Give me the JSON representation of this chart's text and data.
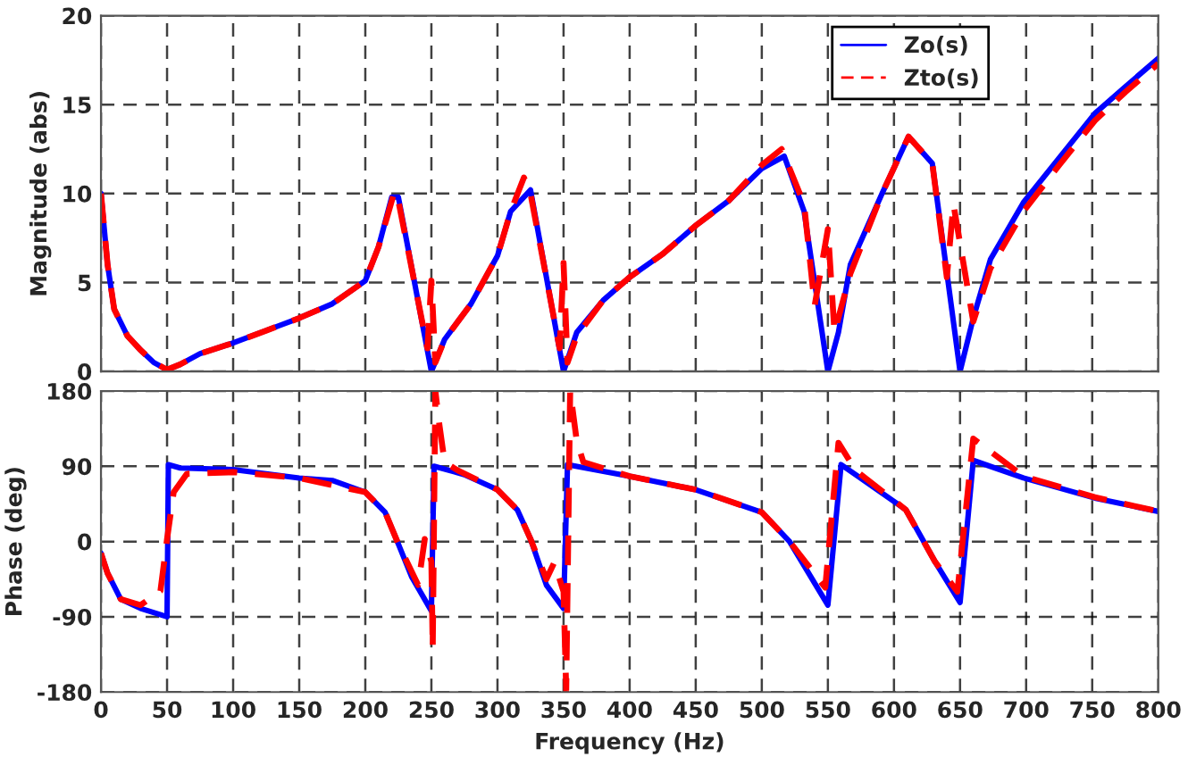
{
  "chart_data": [
    {
      "type": "line",
      "ylabel": "Magnitude (abs)",
      "xlim": [
        0,
        800
      ],
      "xticks": [
        0,
        50,
        100,
        150,
        200,
        250,
        300,
        350,
        400,
        450,
        500,
        550,
        600,
        650,
        700,
        750,
        800
      ],
      "ylim": [
        0,
        20
      ],
      "yticks": [
        0,
        5,
        10,
        15,
        20
      ],
      "grid": true,
      "legend": "top right",
      "tick_labels": "y",
      "series": [
        {
          "name": "Zo(s)",
          "color": "#0000ff",
          "line_style": "solid",
          "x": [
            0,
            5,
            10,
            20,
            30,
            40,
            50,
            60,
            75,
            100,
            125,
            150,
            175,
            200,
            210,
            220,
            225,
            250,
            260,
            280,
            300,
            310,
            325,
            350,
            360,
            380,
            400,
            425,
            450,
            475,
            500,
            517,
            532,
            550,
            558,
            567,
            591,
            611,
            629,
            650,
            660,
            673,
            698,
            725,
            752,
            775,
            800
          ],
          "values": [
            10,
            6,
            3.5,
            2,
            1.2,
            0.5,
            0.1,
            0.4,
            1,
            1.6,
            2.3,
            3,
            3.8,
            5.1,
            7,
            9.8,
            9.8,
            0,
            1.8,
            3.8,
            6.5,
            9,
            10.2,
            0,
            2.2,
            4,
            5.3,
            6.6,
            8.2,
            9.6,
            11.4,
            12.1,
            9,
            0,
            2.2,
            6,
            10,
            13.2,
            11.7,
            0,
            3,
            6.3,
            9.5,
            12,
            14.5,
            16,
            17.6
          ]
        },
        {
          "name": "Zto(s)",
          "color": "#ff0000",
          "line_style": "dashed",
          "x": [
            0,
            5,
            10,
            20,
            30,
            40,
            50,
            60,
            75,
            100,
            125,
            150,
            175,
            200,
            210,
            222,
            225,
            247,
            250,
            253,
            260,
            280,
            300,
            310,
            320,
            325,
            347,
            350,
            353,
            360,
            380,
            400,
            425,
            450,
            475,
            500,
            515,
            532,
            540,
            550,
            555,
            567,
            591,
            611,
            629,
            640,
            645,
            660,
            673,
            698,
            725,
            752,
            775,
            800
          ],
          "values": [
            10,
            6,
            3.5,
            2,
            1.2,
            0.5,
            0.1,
            0.4,
            1,
            1.6,
            2.3,
            3,
            3.8,
            5.1,
            7,
            10.1,
            9.6,
            1.3,
            5.1,
            0.5,
            1.8,
            3.8,
            6.5,
            9,
            10.9,
            10,
            1.3,
            6.1,
            0.5,
            2,
            4,
            5.3,
            6.6,
            8.2,
            9.6,
            11.6,
            12.5,
            9.4,
            3.7,
            8,
            2.2,
            5.5,
            10,
            13.2,
            11.7,
            5.3,
            9.4,
            2.8,
            5.8,
            9,
            11.6,
            14.1,
            15.7,
            17.3
          ]
        }
      ]
    },
    {
      "type": "line",
      "xlabel": "Frequency (Hz)",
      "ylabel": "Phase (deg)",
      "xlim": [
        0,
        800
      ],
      "xticks": [
        0,
        50,
        100,
        150,
        200,
        250,
        300,
        350,
        400,
        450,
        500,
        550,
        600,
        650,
        700,
        750,
        800
      ],
      "ylim": [
        -180,
        180
      ],
      "yticks": [
        -180,
        -90,
        0,
        90,
        180
      ],
      "grid": true,
      "series": [
        {
          "color": "#0000ff",
          "line_style": "solid",
          "x": [
            0,
            5,
            15,
            30,
            50,
            51,
            60,
            100,
            150,
            175,
            200,
            215,
            225,
            235,
            250,
            252,
            275,
            300,
            315,
            325,
            337,
            350,
            353,
            400,
            450,
            500,
            521,
            550,
            560,
            571,
            609,
            631,
            650,
            660,
            698,
            752,
            800
          ],
          "values": [
            -14,
            -38,
            -69,
            -80,
            -90,
            92,
            88,
            86,
            76,
            73,
            59,
            35,
            -3,
            -42,
            -83,
            90,
            80,
            62,
            38,
            3,
            -52,
            -80,
            92,
            78,
            62,
            35,
            0,
            -76,
            92,
            80,
            38,
            -24,
            -73,
            97,
            76,
            52,
            36
          ]
        },
        {
          "color": "#ff0000",
          "line_style": "dashed",
          "x": [
            0,
            5,
            15,
            30,
            45,
            50,
            55,
            65,
            100,
            150,
            200,
            215,
            225,
            240,
            245,
            250,
            251,
            253,
            256,
            260,
            270,
            300,
            315,
            325,
            337,
            343,
            350,
            352,
            355,
            360,
            365,
            400,
            450,
            500,
            521,
            548,
            558,
            571,
            609,
            631,
            648,
            660,
            698,
            752,
            800
          ],
          "values": [
            -14,
            -38,
            -69,
            -76,
            -59,
            3,
            59,
            81,
            83,
            76,
            59,
            35,
            -3,
            -52,
            3,
            -24,
            -128,
            180,
            140,
            95,
            85,
            62,
            38,
            3,
            -45,
            -25,
            -60,
            -178,
            180,
            120,
            95,
            78,
            62,
            35,
            0,
            -55,
            118,
            85,
            38,
            -24,
            -60,
            123,
            78,
            53,
            36
          ]
        }
      ]
    }
  ]
}
